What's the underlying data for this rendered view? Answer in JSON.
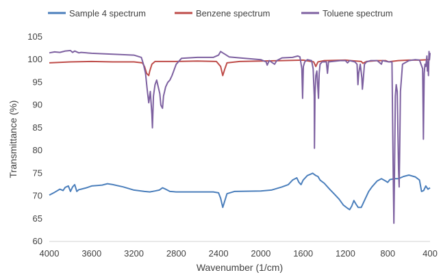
{
  "chart_data": {
    "type": "line",
    "title": "",
    "xlabel": "Wavenumber (1/cm)",
    "ylabel": "Transmittance (%)",
    "xlim": [
      4000,
      400
    ],
    "x_reversed": true,
    "ylim": [
      60,
      105
    ],
    "x_ticks": [
      "4000",
      "3600",
      "3200",
      "2800",
      "2400",
      "2000",
      "1600",
      "1200",
      "800",
      "400"
    ],
    "y_ticks": [
      "60",
      "65",
      "70",
      "75",
      "80",
      "85",
      "90",
      "95",
      "100",
      "105"
    ],
    "grid": false,
    "legend_position": "top",
    "series": [
      {
        "name": "Sample 4 spectrum",
        "color": "#4a7ebb",
        "points": [
          [
            4000,
            70.2
          ],
          [
            3950,
            70.8
          ],
          [
            3900,
            71.5
          ],
          [
            3870,
            71.2
          ],
          [
            3850,
            71.9
          ],
          [
            3820,
            72.2
          ],
          [
            3800,
            71.0
          ],
          [
            3780,
            72.0
          ],
          [
            3760,
            72.5
          ],
          [
            3740,
            71.0
          ],
          [
            3720,
            71.4
          ],
          [
            3700,
            71.5
          ],
          [
            3650,
            71.8
          ],
          [
            3600,
            72.2
          ],
          [
            3500,
            72.4
          ],
          [
            3450,
            72.7
          ],
          [
            3400,
            72.5
          ],
          [
            3300,
            72.0
          ],
          [
            3200,
            71.3
          ],
          [
            3100,
            71.0
          ],
          [
            3050,
            70.9
          ],
          [
            3000,
            71.1
          ],
          [
            2960,
            71.3
          ],
          [
            2930,
            71.8
          ],
          [
            2900,
            71.5
          ],
          [
            2860,
            71.0
          ],
          [
            2800,
            70.9
          ],
          [
            2600,
            70.9
          ],
          [
            2450,
            70.9
          ],
          [
            2400,
            70.7
          ],
          [
            2380,
            69.5
          ],
          [
            2360,
            67.5
          ],
          [
            2340,
            69.0
          ],
          [
            2320,
            70.5
          ],
          [
            2250,
            71.0
          ],
          [
            2000,
            71.1
          ],
          [
            1900,
            71.3
          ],
          [
            1800,
            72.0
          ],
          [
            1740,
            72.5
          ],
          [
            1700,
            73.5
          ],
          [
            1660,
            74.0
          ],
          [
            1640,
            73.0
          ],
          [
            1620,
            72.5
          ],
          [
            1600,
            73.5
          ],
          [
            1560,
            74.5
          ],
          [
            1530,
            74.8
          ],
          [
            1510,
            75.0
          ],
          [
            1480,
            74.5
          ],
          [
            1460,
            74.3
          ],
          [
            1440,
            73.5
          ],
          [
            1400,
            72.8
          ],
          [
            1350,
            71.5
          ],
          [
            1300,
            70.3
          ],
          [
            1260,
            69.3
          ],
          [
            1220,
            68.0
          ],
          [
            1180,
            67.3
          ],
          [
            1160,
            67.0
          ],
          [
            1140,
            67.8
          ],
          [
            1120,
            69.0
          ],
          [
            1100,
            68.2
          ],
          [
            1080,
            67.5
          ],
          [
            1050,
            67.5
          ],
          [
            1020,
            69.0
          ],
          [
            980,
            71.0
          ],
          [
            950,
            72.0
          ],
          [
            900,
            73.3
          ],
          [
            860,
            73.8
          ],
          [
            820,
            73.3
          ],
          [
            800,
            73.0
          ],
          [
            780,
            73.6
          ],
          [
            740,
            73.8
          ],
          [
            700,
            73.8
          ],
          [
            650,
            74.3
          ],
          [
            600,
            74.6
          ],
          [
            540,
            74.2
          ],
          [
            500,
            73.5
          ],
          [
            480,
            71.0
          ],
          [
            460,
            71.2
          ],
          [
            440,
            72.2
          ],
          [
            420,
            71.5
          ],
          [
            400,
            71.8
          ]
        ]
      },
      {
        "name": "Benzene spectrum",
        "color": "#be4b48",
        "points": [
          [
            4000,
            99.3
          ],
          [
            3800,
            99.5
          ],
          [
            3600,
            99.6
          ],
          [
            3400,
            99.5
          ],
          [
            3200,
            99.5
          ],
          [
            3120,
            99.3
          ],
          [
            3100,
            98.5
          ],
          [
            3080,
            97.0
          ],
          [
            3060,
            96.5
          ],
          [
            3050,
            97.5
          ],
          [
            3030,
            99.0
          ],
          [
            3000,
            99.6
          ],
          [
            2800,
            99.6
          ],
          [
            2600,
            99.7
          ],
          [
            2420,
            99.6
          ],
          [
            2380,
            98.5
          ],
          [
            2360,
            96.5
          ],
          [
            2340,
            98.0
          ],
          [
            2320,
            99.3
          ],
          [
            2200,
            99.6
          ],
          [
            2000,
            99.7
          ],
          [
            1800,
            99.8
          ],
          [
            1600,
            99.9
          ],
          [
            1500,
            99.5
          ],
          [
            1480,
            98.5
          ],
          [
            1460,
            99.5
          ],
          [
            1400,
            99.8
          ],
          [
            1200,
            99.9
          ],
          [
            1050,
            99.6
          ],
          [
            1035,
            99.2
          ],
          [
            1000,
            99.6
          ],
          [
            900,
            99.8
          ],
          [
            820,
            99.8
          ],
          [
            790,
            99.5
          ],
          [
            770,
            99.6
          ],
          [
            700,
            99.8
          ],
          [
            600,
            99.9
          ],
          [
            500,
            99.9
          ],
          [
            400,
            100.0
          ]
        ]
      },
      {
        "name": "Toluene spectrum",
        "color": "#7d60a0",
        "points": [
          [
            4000,
            101.5
          ],
          [
            3950,
            101.7
          ],
          [
            3900,
            101.6
          ],
          [
            3850,
            101.9
          ],
          [
            3800,
            102.0
          ],
          [
            3780,
            101.6
          ],
          [
            3760,
            101.9
          ],
          [
            3720,
            101.5
          ],
          [
            3700,
            101.6
          ],
          [
            3600,
            101.4
          ],
          [
            3400,
            101.2
          ],
          [
            3200,
            101.0
          ],
          [
            3130,
            100.5
          ],
          [
            3110,
            99.0
          ],
          [
            3090,
            97.0
          ],
          [
            3075,
            93.5
          ],
          [
            3060,
            90.5
          ],
          [
            3045,
            93.0
          ],
          [
            3030,
            88.0
          ],
          [
            3025,
            85.0
          ],
          [
            3015,
            92.0
          ],
          [
            3000,
            94.5
          ],
          [
            2985,
            95.5
          ],
          [
            2970,
            94.0
          ],
          [
            2955,
            92.5
          ],
          [
            2945,
            90.0
          ],
          [
            2930,
            89.3
          ],
          [
            2920,
            92.0
          ],
          [
            2900,
            94.0
          ],
          [
            2880,
            95.0
          ],
          [
            2860,
            95.5
          ],
          [
            2840,
            96.5
          ],
          [
            2800,
            99.0
          ],
          [
            2750,
            100.3
          ],
          [
            2600,
            100.5
          ],
          [
            2450,
            100.5
          ],
          [
            2400,
            101.0
          ],
          [
            2380,
            101.8
          ],
          [
            2360,
            101.5
          ],
          [
            2340,
            101.2
          ],
          [
            2300,
            100.6
          ],
          [
            2200,
            100.4
          ],
          [
            2000,
            100.0
          ],
          [
            1950,
            99.5
          ],
          [
            1940,
            98.8
          ],
          [
            1920,
            99.8
          ],
          [
            1870,
            99.0
          ],
          [
            1850,
            99.8
          ],
          [
            1800,
            100.4
          ],
          [
            1700,
            100.5
          ],
          [
            1650,
            100.8
          ],
          [
            1630,
            100.6
          ],
          [
            1612,
            98.0
          ],
          [
            1605,
            91.5
          ],
          [
            1598,
            98.5
          ],
          [
            1585,
            99.5
          ],
          [
            1560,
            100.0
          ],
          [
            1520,
            99.8
          ],
          [
            1505,
            98.0
          ],
          [
            1495,
            92.0
          ],
          [
            1493,
            80.5
          ],
          [
            1488,
            92.5
          ],
          [
            1480,
            96.5
          ],
          [
            1470,
            97.5
          ],
          [
            1460,
            93.5
          ],
          [
            1455,
            91.5
          ],
          [
            1448,
            97.0
          ],
          [
            1440,
            99.0
          ],
          [
            1420,
            99.5
          ],
          [
            1380,
            99.5
          ],
          [
            1370,
            97.0
          ],
          [
            1360,
            99.5
          ],
          [
            1250,
            99.8
          ],
          [
            1200,
            99.8
          ],
          [
            1180,
            99.3
          ],
          [
            1160,
            99.8
          ],
          [
            1110,
            99.5
          ],
          [
            1090,
            99.0
          ],
          [
            1082,
            94.5
          ],
          [
            1075,
            97.0
          ],
          [
            1060,
            99.0
          ],
          [
            1045,
            96.0
          ],
          [
            1040,
            93.5
          ],
          [
            1032,
            95.5
          ],
          [
            1020,
            99.0
          ],
          [
            1000,
            99.5
          ],
          [
            960,
            99.8
          ],
          [
            900,
            99.8
          ],
          [
            860,
            99.0
          ],
          [
            850,
            99.8
          ],
          [
            790,
            99.5
          ],
          [
            760,
            99.5
          ],
          [
            748,
            74.0
          ],
          [
            742,
            64.0
          ],
          [
            736,
            75.0
          ],
          [
            728,
            92.0
          ],
          [
            720,
            94.5
          ],
          [
            710,
            93.0
          ],
          [
            698,
            76.0
          ],
          [
            692,
            72.0
          ],
          [
            688,
            78.0
          ],
          [
            680,
            93.0
          ],
          [
            660,
            99.0
          ],
          [
            600,
            99.8
          ],
          [
            540,
            100.0
          ],
          [
            500,
            99.9
          ],
          [
            470,
            98.0
          ],
          [
            466,
            90.0
          ],
          [
            463,
            82.5
          ],
          [
            460,
            88.0
          ],
          [
            455,
            97.0
          ],
          [
            448,
            99.0
          ],
          [
            440,
            98.5
          ],
          [
            430,
            100.8
          ],
          [
            425,
            97.5
          ],
          [
            420,
            99.5
          ],
          [
            415,
            96.5
          ],
          [
            410,
            101.8
          ],
          [
            405,
            100.0
          ],
          [
            400,
            101.5
          ]
        ]
      }
    ]
  }
}
